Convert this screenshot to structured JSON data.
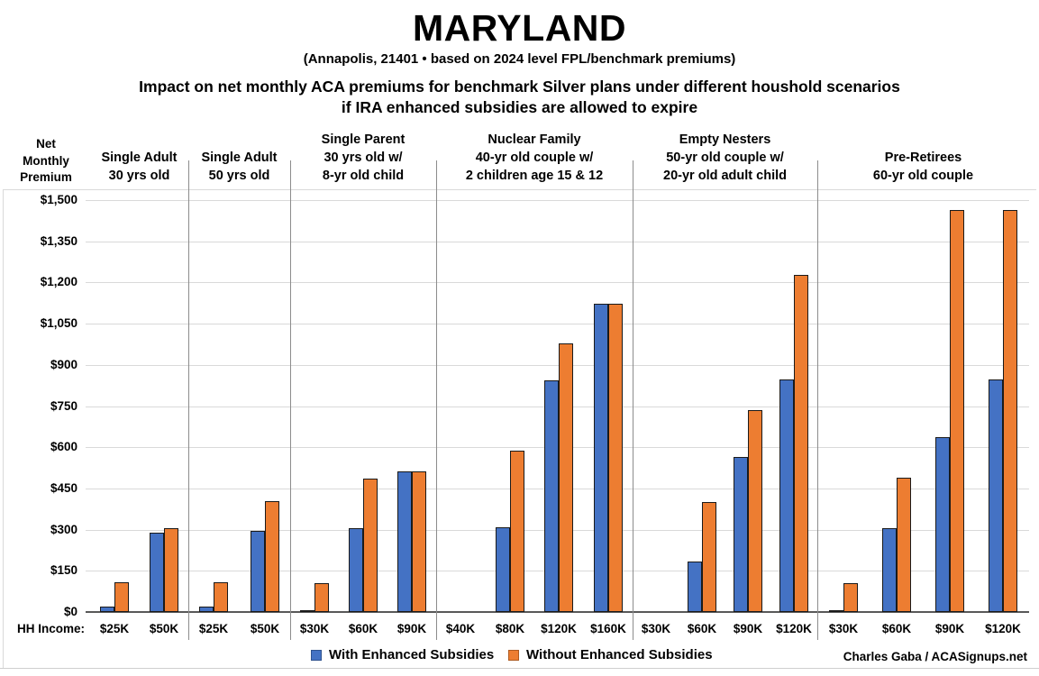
{
  "title": "MARYLAND",
  "subtitle": "(Annapolis, 21401 • based on 2024 level FPL/benchmark premiums)",
  "heading_line1": "Impact on net monthly ACA premiums for benchmark Silver plans under different houshold scenarios",
  "heading_line2": "if IRA enhanced subsidies are allowed to expire",
  "y_axis_title": "Net\nMonthly\nPremium",
  "hh_income_label": "HH Income:",
  "credit": "Charles Gaba / ACASignups.net",
  "colors": {
    "with_enhanced": "#4472C4",
    "without_enhanced": "#ED7D31",
    "bar_border": "#1a1a1a",
    "gridline": "#d9d9d9",
    "divider": "#8c8c8c",
    "axis_line": "#595959"
  },
  "chart_data": {
    "type": "bar",
    "title": "MARYLAND — Impact on net monthly ACA premiums for benchmark Silver plans under different houshold scenarios if IRA enhanced subsidies are allowed to expire",
    "xlabel": "HH Income",
    "ylabel": "Net Monthly Premium",
    "ylim": [
      0,
      1500
    ],
    "ytick_step": 150,
    "grid": true,
    "legend_position": "bottom",
    "series": [
      {
        "name": "With Enhanced Subsidies",
        "color": "#4472C4",
        "swatch_border": "#2F528F"
      },
      {
        "name": "Without Enhanced Subsidies",
        "color": "#ED7D31",
        "swatch_border": "#AE5A21"
      }
    ],
    "groups": [
      {
        "label": "Single Adult\n30 yrs old",
        "incomes": [
          "$25K",
          "$50K"
        ],
        "with_enhanced": [
          20,
          290
        ],
        "without_enhanced": [
          107,
          305
        ]
      },
      {
        "label": "Single Adult\n50 yrs old",
        "incomes": [
          "$25K",
          "$50K"
        ],
        "with_enhanced": [
          20,
          295
        ],
        "without_enhanced": [
          108,
          405
        ]
      },
      {
        "label": "Single Parent\n30 yrs old w/\n8-yr old child",
        "incomes": [
          "$30K",
          "$60K",
          "$90K"
        ],
        "with_enhanced": [
          5,
          305,
          512
        ],
        "without_enhanced": [
          104,
          487,
          512
        ]
      },
      {
        "label": "Nuclear Family\n40-yr old couple w/\n2 children age 15 & 12",
        "incomes": [
          "$40K",
          "$80K",
          "$120K",
          "$160K"
        ],
        "with_enhanced": [
          0,
          310,
          845,
          1122
        ],
        "without_enhanced": [
          0,
          588,
          978,
          1122
        ]
      },
      {
        "label": "Empty Nesters\n50-yr old couple w/\n20-yr old adult child",
        "incomes": [
          "$30K",
          "$60K",
          "$90K",
          "$120K"
        ],
        "with_enhanced": [
          0,
          183,
          563,
          848
        ],
        "without_enhanced": [
          0,
          400,
          735,
          1226
        ]
      },
      {
        "label": "Pre-Retirees\n60-yr old couple",
        "incomes": [
          "$30K",
          "$60K",
          "$90K",
          "$120K"
        ],
        "with_enhanced": [
          5,
          305,
          637,
          848
        ],
        "without_enhanced": [
          104,
          489,
          1465,
          1465
        ]
      }
    ]
  }
}
